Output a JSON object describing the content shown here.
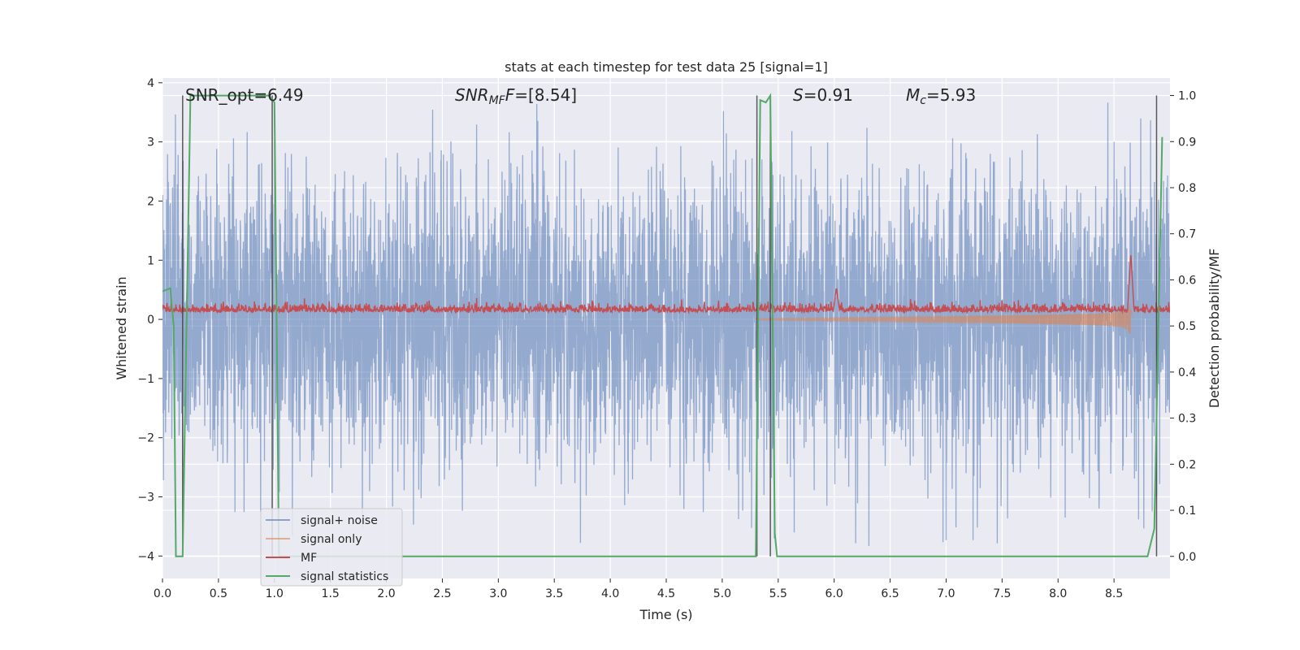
{
  "chart_data": {
    "type": "line",
    "title": "stats at each timestep for test data 25 [signal=1]",
    "xlabel": "Time (s)",
    "ylabel_left": "Whitened strain",
    "ylabel_right": "Detection probability/MF",
    "xlim": [
      0.0,
      9.0
    ],
    "ylim_left": [
      -4.38,
      4.08
    ],
    "ylim_right": [
      -0.048,
      1.038
    ],
    "x_ticks": [
      "0.0",
      "0.5",
      "1.0",
      "1.5",
      "2.0",
      "2.5",
      "3.0",
      "3.5",
      "4.0",
      "4.5",
      "5.0",
      "5.5",
      "6.0",
      "6.5",
      "7.0",
      "7.5",
      "8.0",
      "8.5"
    ],
    "y_left_ticks": [
      "4",
      "3",
      "2",
      "1",
      "0",
      "−1",
      "−2",
      "−3",
      "−4"
    ],
    "y_right_ticks": [
      "1.0",
      "0.9",
      "0.8",
      "0.7",
      "0.6",
      "0.5",
      "0.4",
      "0.3",
      "0.2",
      "0.1",
      "0.0"
    ],
    "annotations": {
      "snr_opt": "SNR_opt=6.49",
      "snr_mf_main": "SNR",
      "snr_mf_sub": "MF",
      "snr_mf_value": "=[8.54]",
      "s_main": "S",
      "s_value": "=0.91",
      "mc_main": "M",
      "mc_sub": "c",
      "mc_value": "=5.93"
    },
    "grid": true,
    "legend_position": "lower-left",
    "series": [
      {
        "name": "signal+ noise",
        "color": "#4c72b0",
        "axis": "left",
        "kind": "noise",
        "typical_amplitude": 1.5,
        "peak_amplitude": 4.0
      },
      {
        "name": "signal only",
        "color": "#dd8452",
        "axis": "left",
        "kind": "chirp",
        "start_time": 5.3,
        "merger_time": 8.65,
        "peak_amplitude": 0.65
      },
      {
        "name": "MF",
        "color": "#c44e52",
        "axis": "left",
        "kind": "mf",
        "baseline": 0.12,
        "peak_time": 8.65,
        "peak_value": 1.0
      },
      {
        "name": "signal statistics",
        "color": "#55a868",
        "axis": "right",
        "kind": "step",
        "x": [
          0.0,
          0.07,
          0.1,
          0.12,
          0.18,
          0.25,
          0.95,
          1.0,
          1.04,
          5.3,
          5.34,
          5.39,
          5.43,
          5.47,
          5.49,
          8.8,
          8.86,
          8.93
        ],
        "y": [
          0.575,
          0.582,
          0.5,
          0.0,
          0.0,
          1.0,
          1.0,
          0.985,
          0.0,
          0.0,
          0.99,
          0.985,
          1.0,
          0.05,
          0.0,
          0.0,
          0.06,
          0.91
        ]
      }
    ],
    "vlines": [
      0.18,
      0.98,
      5.31,
      5.43,
      8.88
    ]
  }
}
